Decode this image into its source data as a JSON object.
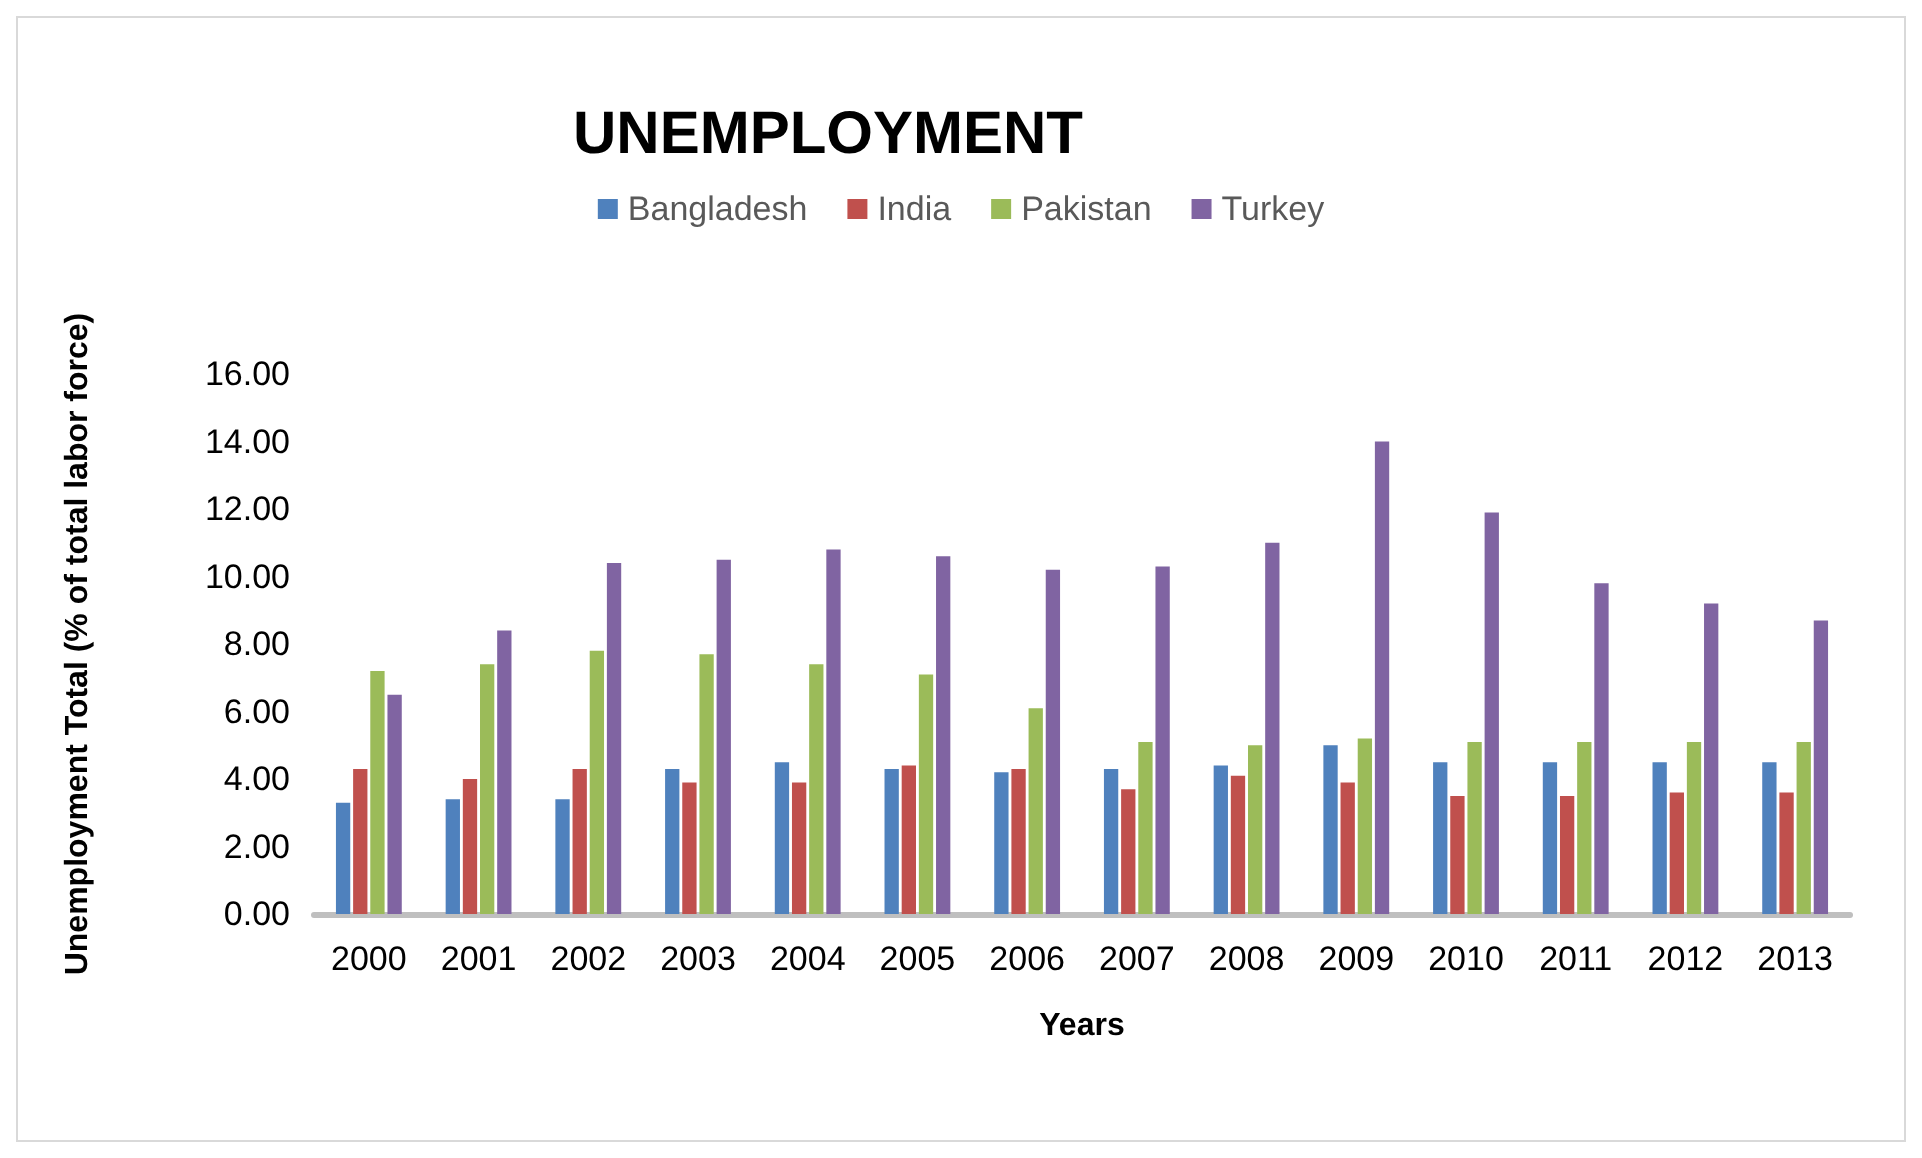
{
  "chart_data": {
    "type": "bar",
    "title": "UNEMPLOYMENT",
    "xlabel": "Years",
    "ylabel": "Unemployment Total (% of total labor force)",
    "categories": [
      "2000",
      "2001",
      "2002",
      "2003",
      "2004",
      "2005",
      "2006",
      "2007",
      "2008",
      "2009",
      "2010",
      "2011",
      "2012",
      "2013"
    ],
    "series": [
      {
        "name": "Bangladesh",
        "color": "#4f81bd",
        "values": [
          3.3,
          3.4,
          3.4,
          4.3,
          4.5,
          4.3,
          4.2,
          4.3,
          4.4,
          5.0,
          4.5,
          4.5,
          4.5,
          4.5
        ]
      },
      {
        "name": "India",
        "color": "#c0504d",
        "values": [
          4.3,
          4.0,
          4.3,
          3.9,
          3.9,
          4.4,
          4.3,
          3.7,
          4.1,
          3.9,
          3.5,
          3.5,
          3.6,
          3.6
        ]
      },
      {
        "name": "Pakistan",
        "color": "#9bbb59",
        "values": [
          7.2,
          7.4,
          7.8,
          7.7,
          7.4,
          7.1,
          6.1,
          5.1,
          5.0,
          5.2,
          5.1,
          5.1,
          5.1,
          5.1
        ]
      },
      {
        "name": "Turkey",
        "color": "#8064a2",
        "values": [
          6.5,
          8.4,
          10.4,
          10.5,
          10.8,
          10.6,
          10.2,
          10.3,
          11.0,
          14.0,
          11.9,
          9.8,
          9.2,
          8.7
        ]
      }
    ],
    "ylim": [
      0,
      16
    ],
    "yticks": [
      {
        "value": 0,
        "label": "0.00"
      },
      {
        "value": 2,
        "label": "2.00"
      },
      {
        "value": 4,
        "label": "4.00"
      },
      {
        "value": 6,
        "label": "6.00"
      },
      {
        "value": 8,
        "label": "8.00"
      },
      {
        "value": 10,
        "label": "10.00"
      },
      {
        "value": 12,
        "label": "12.00"
      },
      {
        "value": 14,
        "label": "14.00"
      },
      {
        "value": 16,
        "label": "16.00"
      }
    ],
    "grid": false,
    "legend": "top"
  }
}
